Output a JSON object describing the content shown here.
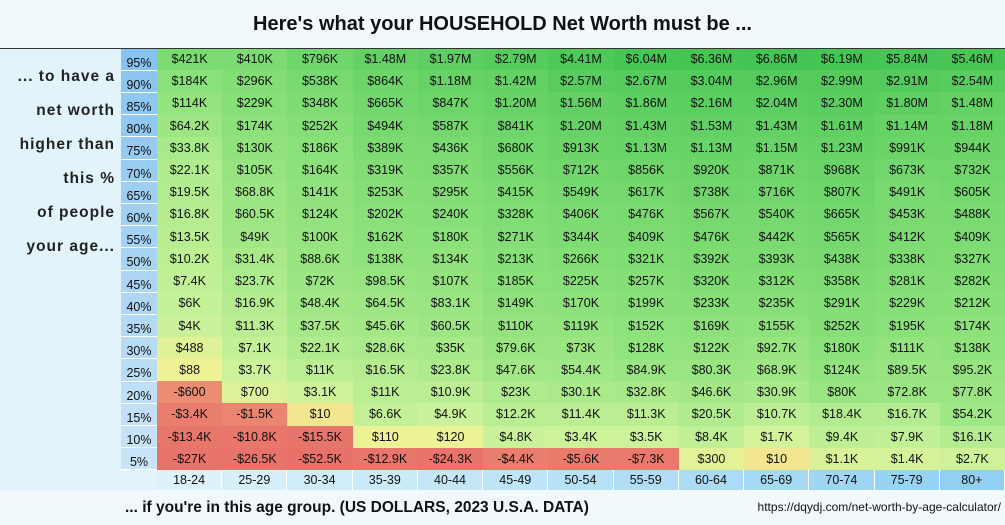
{
  "title": "Here's what your HOUSEHOLD Net Worth must be ...",
  "left_label": [
    "... to have a",
    "net worth",
    "higher than",
    "this %",
    "of people",
    "your age..."
  ],
  "footer_text": "... if you're in this age group. (US DOLLARS, 2023 U.S.A. DATA)",
  "source_url": "https://dqydj.com/net-worth-by-age-calculator/",
  "chart_data": {
    "type": "heatmap",
    "title": "Here's what your HOUSEHOLD Net Worth must be ...",
    "xlabel": "... if you're in this age group. (US DOLLARS, 2023 U.S.A. DATA)",
    "ylabel": "... to have a net worth higher than this % of people your age...",
    "columns": [
      "18-24",
      "25-29",
      "30-34",
      "35-39",
      "40-44",
      "45-49",
      "50-54",
      "55-59",
      "60-64",
      "65-69",
      "70-74",
      "75-79",
      "80+"
    ],
    "rows": [
      "95%",
      "90%",
      "85%",
      "80%",
      "75%",
      "70%",
      "65%",
      "60%",
      "55%",
      "50%",
      "45%",
      "40%",
      "35%",
      "30%",
      "25%",
      "20%",
      "15%",
      "10%",
      "5%"
    ],
    "values": [
      [
        421000,
        410000,
        796000,
        1480000,
        1970000,
        2790000,
        4410000,
        6040000,
        6360000,
        6860000,
        6190000,
        5840000,
        5460000
      ],
      [
        184000,
        296000,
        538000,
        864000,
        1180000,
        1420000,
        2570000,
        2670000,
        3040000,
        2960000,
        2990000,
        2910000,
        2540000
      ],
      [
        114000,
        229000,
        348000,
        665000,
        847000,
        1200000,
        1560000,
        1860000,
        2160000,
        2040000,
        2300000,
        1800000,
        1480000
      ],
      [
        64200,
        174000,
        252000,
        494000,
        587000,
        841000,
        1200000,
        1430000,
        1530000,
        1430000,
        1610000,
        1140000,
        1180000
      ],
      [
        33800,
        130000,
        186000,
        389000,
        436000,
        680000,
        913000,
        1130000,
        1130000,
        1150000,
        1230000,
        991000,
        944000
      ],
      [
        22100,
        105000,
        164000,
        319000,
        357000,
        556000,
        712000,
        856000,
        920000,
        871000,
        968000,
        673000,
        732000
      ],
      [
        19500,
        68800,
        141000,
        253000,
        295000,
        415000,
        549000,
        617000,
        738000,
        716000,
        807000,
        491000,
        605000
      ],
      [
        16800,
        60500,
        124000,
        202000,
        240000,
        328000,
        406000,
        476000,
        567000,
        540000,
        665000,
        453000,
        488000
      ],
      [
        13500,
        49000,
        100000,
        162000,
        180000,
        271000,
        344000,
        409000,
        476000,
        442000,
        565000,
        412000,
        409000
      ],
      [
        10200,
        31400,
        88600,
        138000,
        134000,
        213000,
        266000,
        321000,
        392000,
        393000,
        438000,
        338000,
        327000
      ],
      [
        7400,
        23700,
        72000,
        98500,
        107000,
        185000,
        225000,
        257000,
        320000,
        312000,
        358000,
        281000,
        282000
      ],
      [
        6000,
        16900,
        48400,
        64500,
        83100,
        149000,
        170000,
        199000,
        233000,
        235000,
        291000,
        229000,
        212000
      ],
      [
        4000,
        11300,
        37500,
        45600,
        60500,
        110000,
        119000,
        152000,
        169000,
        155000,
        252000,
        195000,
        174000
      ],
      [
        488,
        7100,
        22100,
        28600,
        35000,
        79600,
        73000,
        128000,
        122000,
        92700,
        180000,
        111000,
        138000
      ],
      [
        88,
        3700,
        11000,
        16500,
        23800,
        47600,
        54400,
        84900,
        80300,
        68900,
        124000,
        89500,
        95200
      ],
      [
        -600,
        700,
        3100,
        11000,
        10900,
        23000,
        30100,
        32800,
        46600,
        30900,
        80000,
        72800,
        77800
      ],
      [
        -3400,
        -1500,
        10,
        6600,
        4900,
        12200,
        11400,
        11300,
        20500,
        10700,
        18400,
        16700,
        54200
      ],
      [
        -13400,
        -10800,
        -15500,
        110,
        120,
        4800,
        3400,
        3500,
        8400,
        1700,
        9400,
        7900,
        16100
      ],
      [
        -27000,
        -26500,
        -52500,
        -12900,
        -24300,
        -4400,
        -5600,
        -7300,
        300,
        10,
        1100,
        1400,
        2700
      ]
    ],
    "labels": [
      [
        "$421K",
        "$410K",
        "$796K",
        "$1.48M",
        "$1.97M",
        "$2.79M",
        "$4.41M",
        "$6.04M",
        "$6.36M",
        "$6.86M",
        "$6.19M",
        "$5.84M",
        "$5.46M"
      ],
      [
        "$184K",
        "$296K",
        "$538K",
        "$864K",
        "$1.18M",
        "$1.42M",
        "$2.57M",
        "$2.67M",
        "$3.04M",
        "$2.96M",
        "$2.99M",
        "$2.91M",
        "$2.54M"
      ],
      [
        "$114K",
        "$229K",
        "$348K",
        "$665K",
        "$847K",
        "$1.20M",
        "$1.56M",
        "$1.86M",
        "$2.16M",
        "$2.04M",
        "$2.30M",
        "$1.80M",
        "$1.48M"
      ],
      [
        "$64.2K",
        "$174K",
        "$252K",
        "$494K",
        "$587K",
        "$841K",
        "$1.20M",
        "$1.43M",
        "$1.53M",
        "$1.43M",
        "$1.61M",
        "$1.14M",
        "$1.18M"
      ],
      [
        "$33.8K",
        "$130K",
        "$186K",
        "$389K",
        "$436K",
        "$680K",
        "$913K",
        "$1.13M",
        "$1.13M",
        "$1.15M",
        "$1.23M",
        "$991K",
        "$944K"
      ],
      [
        "$22.1K",
        "$105K",
        "$164K",
        "$319K",
        "$357K",
        "$556K",
        "$712K",
        "$856K",
        "$920K",
        "$871K",
        "$968K",
        "$673K",
        "$732K"
      ],
      [
        "$19.5K",
        "$68.8K",
        "$141K",
        "$253K",
        "$295K",
        "$415K",
        "$549K",
        "$617K",
        "$738K",
        "$716K",
        "$807K",
        "$491K",
        "$605K"
      ],
      [
        "$16.8K",
        "$60.5K",
        "$124K",
        "$202K",
        "$240K",
        "$328K",
        "$406K",
        "$476K",
        "$567K",
        "$540K",
        "$665K",
        "$453K",
        "$488K"
      ],
      [
        "$13.5K",
        "$49K",
        "$100K",
        "$162K",
        "$180K",
        "$271K",
        "$344K",
        "$409K",
        "$476K",
        "$442K",
        "$565K",
        "$412K",
        "$409K"
      ],
      [
        "$10.2K",
        "$31.4K",
        "$88.6K",
        "$138K",
        "$134K",
        "$213K",
        "$266K",
        "$321K",
        "$392K",
        "$393K",
        "$438K",
        "$338K",
        "$327K"
      ],
      [
        "$7.4K",
        "$23.7K",
        "$72K",
        "$98.5K",
        "$107K",
        "$185K",
        "$225K",
        "$257K",
        "$320K",
        "$312K",
        "$358K",
        "$281K",
        "$282K"
      ],
      [
        "$6K",
        "$16.9K",
        "$48.4K",
        "$64.5K",
        "$83.1K",
        "$149K",
        "$170K",
        "$199K",
        "$233K",
        "$235K",
        "$291K",
        "$229K",
        "$212K"
      ],
      [
        "$4K",
        "$11.3K",
        "$37.5K",
        "$45.6K",
        "$60.5K",
        "$110K",
        "$119K",
        "$152K",
        "$169K",
        "$155K",
        "$252K",
        "$195K",
        "$174K"
      ],
      [
        "$488",
        "$7.1K",
        "$22.1K",
        "$28.6K",
        "$35K",
        "$79.6K",
        "$73K",
        "$128K",
        "$122K",
        "$92.7K",
        "$180K",
        "$111K",
        "$138K"
      ],
      [
        "$88",
        "$3.7K",
        "$11K",
        "$16.5K",
        "$23.8K",
        "$47.6K",
        "$54.4K",
        "$84.9K",
        "$80.3K",
        "$68.9K",
        "$124K",
        "$89.5K",
        "$95.2K"
      ],
      [
        "-$600",
        "$700",
        "$3.1K",
        "$11K",
        "$10.9K",
        "$23K",
        "$30.1K",
        "$32.8K",
        "$46.6K",
        "$30.9K",
        "$80K",
        "$72.8K",
        "$77.8K"
      ],
      [
        "-$3.4K",
        "-$1.5K",
        "$10",
        "$6.6K",
        "$4.9K",
        "$12.2K",
        "$11.4K",
        "$11.3K",
        "$20.5K",
        "$10.7K",
        "$18.4K",
        "$16.7K",
        "$54.2K"
      ],
      [
        "-$13.4K",
        "-$10.8K",
        "-$15.5K",
        "$110",
        "$120",
        "$4.8K",
        "$3.4K",
        "$3.5K",
        "$8.4K",
        "$1.7K",
        "$9.4K",
        "$7.9K",
        "$16.1K"
      ],
      [
        "-$27K",
        "-$26.5K",
        "-$52.5K",
        "-$12.9K",
        "-$24.3K",
        "-$4.4K",
        "-$5.6K",
        "-$7.3K",
        "$300",
        "$10",
        "$1.1K",
        "$1.4K",
        "$2.7K"
      ]
    ],
    "color_scale": [
      "#e8726a",
      "#f5d08a",
      "#f2f295",
      "#c9f29a",
      "#88e078",
      "#44c454"
    ]
  }
}
